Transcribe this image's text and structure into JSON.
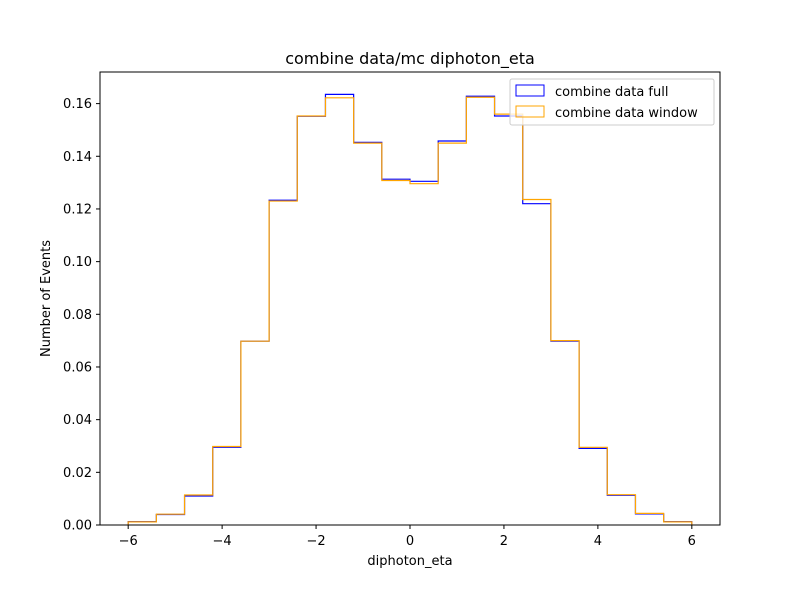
{
  "chart_data": {
    "type": "histogram-step",
    "title": "combine data/mc diphoton_eta",
    "xlabel": "diphoton_eta",
    "ylabel": "Number of Events",
    "xlim": [
      -6.6,
      6.6
    ],
    "ylim": [
      0,
      0.172
    ],
    "xticks": [
      -6,
      -4,
      -2,
      0,
      2,
      4,
      6
    ],
    "xtick_labels": [
      "−6",
      "−4",
      "−2",
      "0",
      "2",
      "4",
      "6"
    ],
    "yticks": [
      0.0,
      0.02,
      0.04,
      0.06,
      0.08,
      0.1,
      0.12,
      0.14,
      0.16
    ],
    "ytick_labels": [
      "0.00",
      "0.02",
      "0.04",
      "0.06",
      "0.08",
      "0.10",
      "0.12",
      "0.14",
      "0.16"
    ],
    "grid": false,
    "legend_position": "top-right",
    "bin_edges": [
      -6.0,
      -5.4,
      -4.8,
      -4.2,
      -3.6,
      -3.0,
      -2.4,
      -1.8,
      -1.2,
      -0.6,
      0.0,
      0.6,
      1.2,
      1.8,
      2.4,
      3.0,
      3.6,
      4.2,
      4.8,
      5.4,
      6.0
    ],
    "series": [
      {
        "name": "combine data full",
        "color": "#0000ff",
        "values": [
          0.0013,
          0.004,
          0.011,
          0.0295,
          0.0698,
          0.1233,
          0.1552,
          0.1635,
          0.1453,
          0.1313,
          0.1305,
          0.1458,
          0.1628,
          0.1553,
          0.122,
          0.0698,
          0.0291,
          0.0113,
          0.0042,
          0.0013
        ]
      },
      {
        "name": "combine data window",
        "color": "#ffa500",
        "values": [
          0.0012,
          0.0041,
          0.0114,
          0.0298,
          0.0698,
          0.123,
          0.1553,
          0.1622,
          0.145,
          0.1308,
          0.1296,
          0.145,
          0.1624,
          0.156,
          0.1236,
          0.07,
          0.0295,
          0.0115,
          0.0044,
          0.0012
        ]
      }
    ]
  }
}
